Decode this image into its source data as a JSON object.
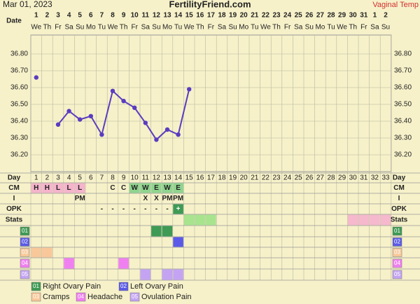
{
  "header": {
    "date": "Mar 01, 2023",
    "site": "FertilityFriend.com",
    "temp_type": "Vaginal Temp"
  },
  "chart_data": {
    "type": "line",
    "x_label": "Date",
    "dates": [
      1,
      2,
      3,
      4,
      5,
      6,
      7,
      8,
      9,
      10,
      11,
      12,
      13,
      14,
      15,
      16,
      17,
      18,
      19,
      20,
      21,
      22,
      23,
      24,
      25,
      26,
      27,
      28,
      29,
      30,
      31,
      1,
      2
    ],
    "weekdays": [
      "We",
      "Th",
      "Fr",
      "Sa",
      "Su",
      "Mo",
      "Tu",
      "We",
      "Th",
      "Fr",
      "Sa",
      "Su",
      "Mo",
      "Tu",
      "We",
      "Th",
      "Fr",
      "Sa",
      "Su",
      "Mo",
      "Tu",
      "We",
      "Th",
      "Fr",
      "Sa",
      "Su",
      "Mo",
      "Tu",
      "We",
      "Th",
      "Fr",
      "Sa",
      "Su"
    ],
    "series": [
      {
        "color": "#5a3cc0",
        "values": [
          36.66,
          null,
          36.38,
          36.46,
          36.41,
          36.43,
          36.32,
          36.58,
          36.52,
          36.48,
          36.39,
          36.29,
          36.35,
          36.32,
          36.59,
          null,
          null,
          null,
          null,
          null,
          null,
          null,
          null,
          null,
          null,
          null,
          null,
          null,
          null,
          null,
          null,
          null,
          null
        ]
      }
    ],
    "ylim": [
      36.1,
      36.9
    ],
    "yticks": [
      {
        "value": 36.8,
        "label": "36.80"
      },
      {
        "value": 36.7,
        "label": "36.70"
      },
      {
        "value": 36.6,
        "label": "36.60"
      },
      {
        "value": 36.5,
        "label": "36.50"
      },
      {
        "value": 36.4,
        "label": "36.40"
      },
      {
        "value": 36.3,
        "label": "36.30"
      },
      {
        "value": 36.2,
        "label": "36.20"
      }
    ],
    "grid": true
  },
  "table": {
    "day_label": "Day",
    "days": [
      1,
      2,
      3,
      4,
      5,
      6,
      7,
      8,
      9,
      10,
      11,
      12,
      13,
      14,
      15,
      16,
      17,
      18,
      19,
      20,
      21,
      22,
      23,
      24,
      25,
      26,
      27,
      28,
      29,
      30,
      31,
      32,
      33
    ],
    "rows": [
      {
        "label": "CM",
        "cells": [
          "H",
          "H",
          "L",
          "L",
          "L",
          null,
          null,
          "C",
          "C",
          "W",
          "W",
          "E",
          "W",
          "E"
        ],
        "cell_colors": {
          "H": "#f5b4cc",
          "L": "#f5b4cc",
          "W": "#8fd48f",
          "E": "#8fd48f"
        }
      },
      {
        "label": "I",
        "cells": [
          null,
          null,
          null,
          null,
          "PM",
          null,
          null,
          null,
          null,
          null,
          "X",
          "X",
          "PM",
          "PM"
        ]
      },
      {
        "label": "OPK",
        "cells": [
          null,
          null,
          null,
          null,
          null,
          null,
          "-",
          "-",
          "-",
          "-",
          "-",
          "-",
          "-",
          "+"
        ],
        "cell_colors": {
          "+": "#3f9a55"
        }
      }
    ],
    "stats_label": "Stats",
    "stats": [
      {
        "color": "#a8e48e",
        "days": [
          15,
          16,
          17
        ]
      },
      {
        "color": "#f5b8cc",
        "days": [
          30,
          31,
          32,
          33
        ]
      }
    ],
    "symptoms": [
      {
        "code": "01",
        "name": "Right Ovary Pain",
        "color": "#3f9a55",
        "days": [
          12,
          13
        ]
      },
      {
        "code": "02",
        "name": "Left Ovary Pain",
        "color": "#5a5ae6",
        "days": [
          14
        ]
      },
      {
        "code": "03",
        "name": "Cramps",
        "color": "#f8c89a",
        "days": [
          1,
          2
        ]
      },
      {
        "code": "04",
        "name": "Headache",
        "color": "#f080f0",
        "days": [
          4,
          9
        ]
      },
      {
        "code": "05",
        "name": "Ovulation Pain",
        "color": "#c4a4f2",
        "days": [
          11,
          13,
          14
        ]
      }
    ]
  }
}
